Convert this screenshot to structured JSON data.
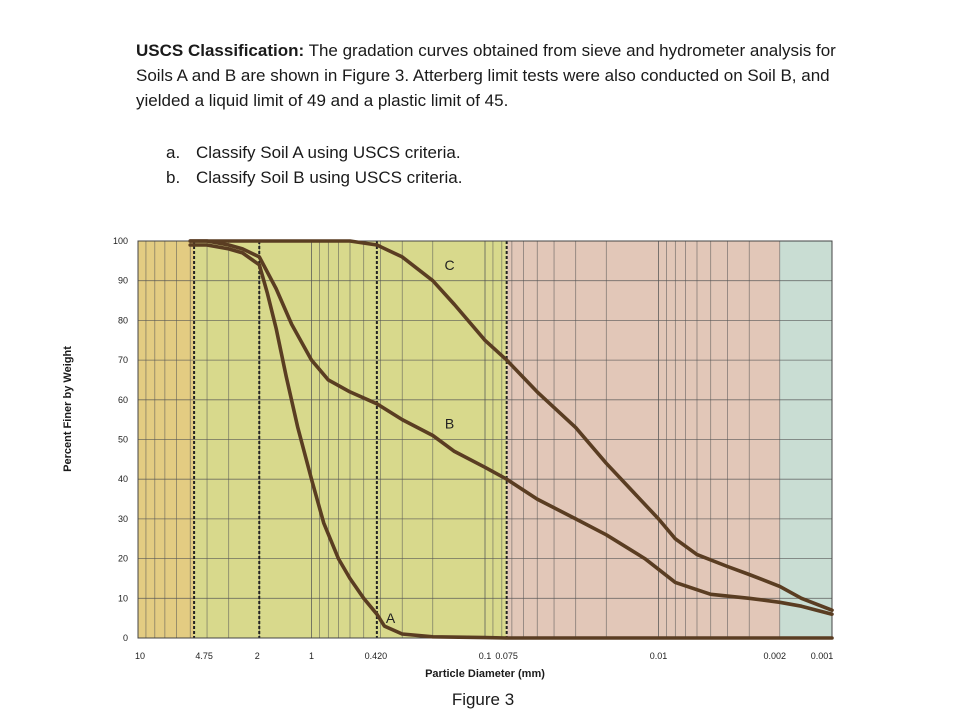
{
  "problem": {
    "heading": "USCS Classification:",
    "body": " The gradation curves obtained from sieve and hydrometer analysis for Soils A and B are shown in Figure 3. Atterberg limit tests were also conducted on Soil B, and yielded a liquid limit of 49 and a plastic limit of 45.",
    "parts": [
      {
        "label": "a.",
        "text": "Classify Soil A using USCS criteria."
      },
      {
        "label": "b.",
        "text": "Classify Soil B using USCS criteria."
      }
    ]
  },
  "figure_caption": "Figure 3",
  "chart_data": {
    "type": "line",
    "xlabel": "Particle Diameter (mm)",
    "ylabel": "Percent Finer by Weight",
    "x_scale": "log",
    "x_reversed": true,
    "xlim": [
      10,
      0.001
    ],
    "ylim": [
      0,
      100
    ],
    "y_ticks": [
      0,
      10,
      20,
      30,
      40,
      50,
      60,
      70,
      80,
      90,
      100
    ],
    "x_tick_labels": [
      {
        "value": 10,
        "label": "10"
      },
      {
        "value": 4.75,
        "label": "4.75"
      },
      {
        "value": 2,
        "label": "2"
      },
      {
        "value": 1,
        "label": "1"
      },
      {
        "value": 0.42,
        "label": "0.420"
      },
      {
        "value": 0.1,
        "label": "0.1"
      },
      {
        "value": 0.075,
        "label": "0.075"
      },
      {
        "value": 0.01,
        "label": "0.01"
      },
      {
        "value": 0.002,
        "label": "0.002"
      },
      {
        "value": 0.001,
        "label": "0.001"
      }
    ],
    "boundaries": [
      4.75,
      2,
      0.42,
      0.075
    ],
    "zones": [
      {
        "from": 10,
        "to": 4.75,
        "color": "#e3cc82"
      },
      {
        "from": 4.75,
        "to": 0.075,
        "color": "#d8d98c"
      },
      {
        "from": 0.075,
        "to": 0.002,
        "color": "#e2c7b8"
      },
      {
        "from": 0.002,
        "to": 0.001,
        "color": "#c9ddd3"
      }
    ],
    "line_color": "#5a3d22",
    "series": [
      {
        "name": "A",
        "label_at": [
          0.35,
          5
        ],
        "x": [
          5,
          4.75,
          4,
          3,
          2.5,
          2,
          1.8,
          1.6,
          1.4,
          1.2,
          1.0,
          0.85,
          0.7,
          0.6,
          0.5,
          0.42,
          0.38,
          0.3,
          0.2,
          0.1,
          0.075,
          0.05,
          0.01,
          0.002,
          0.001
        ],
        "y": [
          99,
          99,
          99,
          98,
          97,
          94,
          87,
          78,
          66,
          53,
          40,
          29,
          20,
          15,
          10,
          6,
          3,
          1,
          0.3,
          0.1,
          0,
          0,
          0,
          0,
          0
        ]
      },
      {
        "name": "B",
        "label_at": [
          0.16,
          54
        ],
        "x": [
          5,
          4.75,
          4,
          3,
          2.5,
          2,
          1.6,
          1.3,
          1.0,
          0.8,
          0.6,
          0.42,
          0.3,
          0.2,
          0.15,
          0.1,
          0.075,
          0.05,
          0.03,
          0.02,
          0.012,
          0.008,
          0.005,
          0.003,
          0.002,
          0.0015,
          0.001
        ],
        "y": [
          100,
          100,
          100,
          99,
          98,
          96,
          88,
          79,
          70,
          65,
          62,
          59,
          55,
          51,
          47,
          43,
          40,
          35,
          30,
          26,
          20,
          14,
          11,
          10,
          9,
          8,
          6
        ]
      },
      {
        "name": "C",
        "label_at": [
          0.16,
          94
        ],
        "x": [
          5,
          4.75,
          3,
          2,
          1,
          0.6,
          0.42,
          0.3,
          0.2,
          0.15,
          0.1,
          0.075,
          0.05,
          0.03,
          0.02,
          0.01,
          0.008,
          0.006,
          0.004,
          0.003,
          0.002,
          0.0015,
          0.001
        ],
        "y": [
          100,
          100,
          100,
          100,
          100,
          100,
          99,
          96,
          90,
          84,
          75,
          70,
          62,
          53,
          44,
          30,
          25,
          21,
          18,
          16,
          13,
          10,
          7
        ]
      }
    ]
  }
}
